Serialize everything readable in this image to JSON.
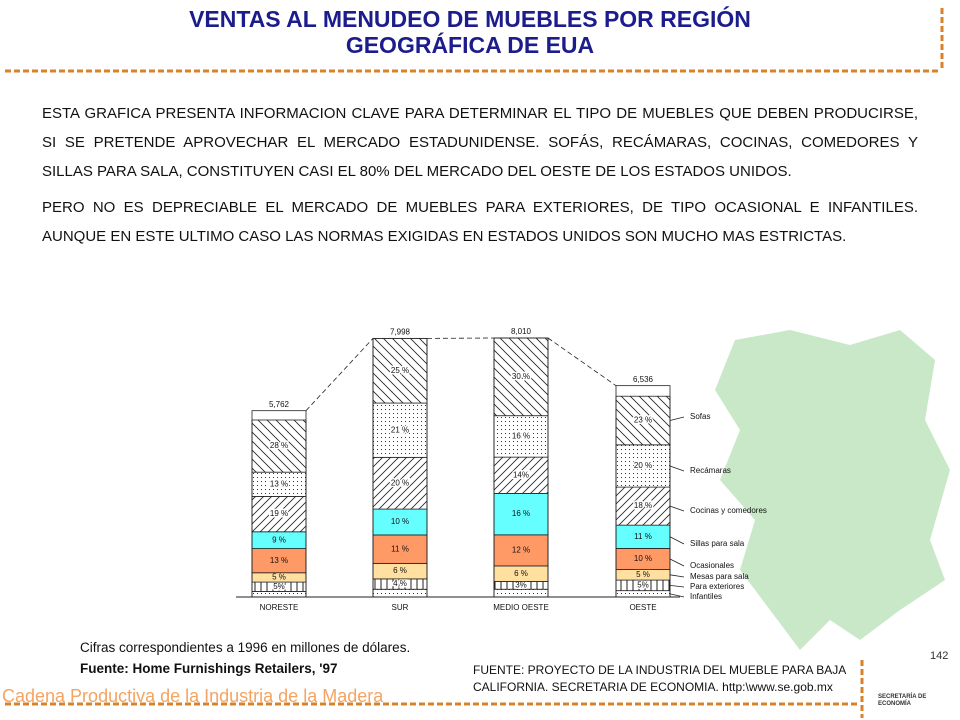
{
  "header": {
    "title_lines": [
      "VENTAS AL MENUDEO DE MUEBLES POR REGIÓN",
      "GEOGRÁFICA DE EUA"
    ]
  },
  "body": {
    "paragraphs": [
      "ESTA GRAFICA PRESENTA INFORMACION CLAVE PARA DETERMINAR EL TIPO DE MUEBLES QUE DEBEN PRODUCIRSE, SI SE PRETENDE APROVECHAR EL MERCADO ESTADUNIDENSE. SOFÁS, RECÁMARAS, COCINAS, COMEDORES Y SILLAS PARA SALA, CONSTITUYEN CASI EL 80% DEL MERCADO DEL OESTE DE LOS ESTADOS UNIDOS.",
      "PERO NO ES DEPRECIABLE EL MERCADO DE MUEBLES PARA EXTERIORES, DE TIPO OCASIONAL E INFANTILES. AUNQUE EN ESTE ULTIMO CASO LAS NORMAS EXIGIDAS EN ESTADOS UNIDOS SON MUCHO MAS ESTRICTAS."
    ]
  },
  "chart_data": {
    "type": "bar",
    "stacked": true,
    "categories": [
      "NORESTE",
      "SUR",
      "MEDIO OESTE",
      "OESTE"
    ],
    "totals": {
      "values": [
        5762,
        7998,
        8010,
        6536
      ],
      "value_labels": [
        "5,762",
        "7,998",
        "8,010",
        "6,536"
      ]
    },
    "series": [
      {
        "name": "Infantiles",
        "color": "#ffffff",
        "pattern": "dots",
        "values": [
          3,
          3,
          3,
          3
        ],
        "value_labels": [
          null,
          null,
          null,
          null
        ]
      },
      {
        "name": "Para exteriores",
        "color": "#ffffff",
        "pattern": "vlines",
        "values": [
          5,
          4,
          3,
          5
        ],
        "value_labels": [
          "5%",
          "4 %",
          "3%",
          "5%"
        ]
      },
      {
        "name": "Mesas para sala",
        "color": "#ffe0a0",
        "pattern": "solid",
        "values": [
          5,
          6,
          6,
          5
        ],
        "value_labels": [
          "5 %",
          "6 %",
          "6 %",
          "5 %"
        ]
      },
      {
        "name": "Ocasionales",
        "color": "#ff9966",
        "pattern": "solid",
        "values": [
          13,
          11,
          12,
          10
        ],
        "value_labels": [
          "13 %",
          "11 %",
          "12 %",
          "10 %"
        ]
      },
      {
        "name": "Sillas para sala",
        "color": "#66ffff",
        "pattern": "solid",
        "values": [
          9,
          10,
          16,
          11
        ],
        "value_labels": [
          "9 %",
          "10 %",
          "16 %",
          "11 %"
        ]
      },
      {
        "name": "Cocinas y comedores",
        "color": "#ffffff",
        "pattern": "hatch-a",
        "values": [
          19,
          20,
          14,
          18
        ],
        "value_labels": [
          "19 %",
          "20 %",
          "14%",
          "18 %"
        ]
      },
      {
        "name": "Recámaras",
        "color": "#ffffff",
        "pattern": "dots",
        "values": [
          13,
          21,
          16,
          20
        ],
        "value_labels": [
          "13 %",
          "21 %",
          "16 %",
          "20 %"
        ]
      },
      {
        "name": "Sofas",
        "color": "#ffffff",
        "pattern": "hatch-b",
        "values": [
          28,
          25,
          30,
          23
        ],
        "value_labels": [
          "28 %",
          "25 %",
          "30 %",
          "23 %"
        ]
      }
    ]
  },
  "notes": [
    "Cifras correspondientes a 1996 en millones de dólares.",
    "Fuente: Home Furnishings Retailers, '97"
  ],
  "source": [
    "FUENTE:  PROYECTO DE LA INDUSTRIA  DEL MUEBLE PARA BAJA",
    "CALIFORNIA.  SECRETARIA  DE ECONOMIA.  http:\\www.se.gob.mx"
  ],
  "page_number": "142",
  "footer": "Cadena Productiva de la Industria de la Madera",
  "logo": [
    "SECRETARÍA DE",
    "ECONOMÍA"
  ]
}
